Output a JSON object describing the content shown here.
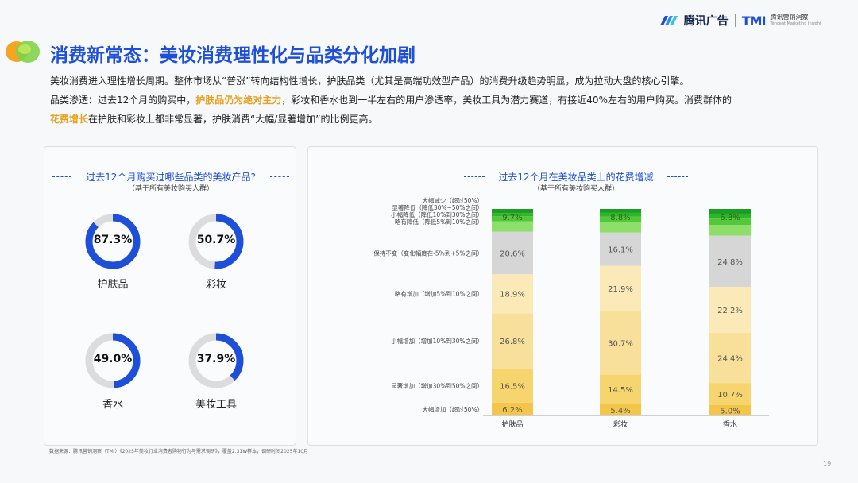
{
  "header": {
    "brand_tencent": "腾讯广告",
    "brand_tmi": "TMI",
    "brand_tmi_cn": "腾讯营销洞察",
    "brand_tmi_en": "Tencent Marketing Insight"
  },
  "page_title": "消费新常态：美妆消费理性化与品类分化加剧",
  "intro": {
    "line1": "美妆消费进入理性增长周期。整体市场从“普涨”转向结构性增长，护肤品类（尤其是高端功效型产品）的消费升级趋势明显，成为拉动大盘的核心引擎。",
    "line2_a": "品类渗透：过去12个月的购买中，",
    "line2_hl": "护肤品仍为绝对主力",
    "line2_b": "，彩妆和香水也到一半左右的用户渗透率，美妆工具为潜力赛道，有接近40%左右的用户购买。消费群体的",
    "line3_hl": "花费增长",
    "line3_b": "在护肤和彩妆上都非常显著，护肤消费“大幅/显著增加”的比例更高。"
  },
  "left_panel": {
    "title": "过去12个月购买过哪些品类的美妆产品?",
    "subtitle": "（基于所有美妆购买人群）",
    "items": [
      {
        "value": 87.3,
        "display": "87.3%",
        "label": "护肤品"
      },
      {
        "value": 50.7,
        "display": "50.7%",
        "label": "彩妆"
      },
      {
        "value": 49.0,
        "display": "49.0%",
        "label": "香水"
      },
      {
        "value": 37.9,
        "display": "37.9%",
        "label": "美妆工具"
      }
    ],
    "colors": {
      "fill": "#1d4fd8",
      "track": "#dcdcdc"
    }
  },
  "right_panel": {
    "title": "过去12个月在美妆品类上的花费增减",
    "subtitle": "（基于所有美妆购买人群）"
  },
  "chart_data": [
    {
      "type": "donut",
      "categories": [
        "护肤品",
        "彩妆",
        "香水",
        "美妆工具"
      ],
      "values": [
        87.3,
        50.7,
        49.0,
        37.9
      ],
      "unit": "%"
    },
    {
      "type": "bar",
      "stacked": true,
      "percent": true,
      "categories": [
        "护肤品",
        "彩妆",
        "香水"
      ],
      "series": [
        {
          "name": "大幅增加（超过50%）",
          "color": "#f3c64a",
          "values": [
            6.2,
            5.4,
            5.0
          ],
          "labels": [
            "6.2%",
            "5.4%",
            "5.0%"
          ]
        },
        {
          "name": "显著增加（增加30%到50%之间）",
          "color": "#f6d46e",
          "values": [
            16.5,
            14.5,
            10.7
          ],
          "labels": [
            "16.5%",
            "14.5%",
            "10.7%"
          ]
        },
        {
          "name": "小幅增加（增加10%到30%之间）",
          "color": "#f9e09a",
          "values": [
            26.8,
            30.7,
            24.4
          ],
          "labels": [
            "26.8%",
            "30.7%",
            "24.4%"
          ]
        },
        {
          "name": "略有增加（增加5%到10%之间）",
          "color": "#fbeab8",
          "values": [
            18.9,
            21.9,
            22.2
          ],
          "labels": [
            "18.9%",
            "21.9%",
            "22.2%"
          ]
        },
        {
          "name": "保持不变（变化幅度在-5%到+5%之间）",
          "color": "#d6d6d6",
          "values": [
            20.6,
            16.1,
            24.8
          ],
          "labels": [
            "20.6%",
            "16.1%",
            "24.8%"
          ]
        },
        {
          "name": "略有降低（降低5%到10%之间）",
          "color": "#8ede6a",
          "values": [
            5.0,
            5.2,
            5.2
          ],
          "labels": [
            "",
            "",
            ""
          ]
        },
        {
          "name": "小幅降低（降低10%到30%之间）",
          "color": "#52c83a",
          "values": [
            2.5,
            2.5,
            3.0
          ],
          "labels": [
            "",
            "",
            ""
          ]
        },
        {
          "name": "显著降低（降低30%~50%之间）",
          "color": "#2fb52a",
          "values": [
            1.5,
            1.8,
            2.3
          ],
          "labels": [
            "",
            "",
            ""
          ]
        },
        {
          "name": "大幅减少（超过50%）",
          "color": "#1a9f22",
          "values": [
            2.0,
            1.9,
            2.4
          ],
          "labels": [
            "",
            "",
            ""
          ]
        }
      ],
      "top_segment_labels": [
        "9.7%",
        "8.8%",
        "6.8%"
      ]
    }
  ],
  "footer": {
    "source": "数据来源：腾讯营销洞察（TMI）《2025年美妆行业消费者购物行为与需求调研》，覆盖2.31W样本，调研时间2025年10月",
    "page": "19"
  }
}
